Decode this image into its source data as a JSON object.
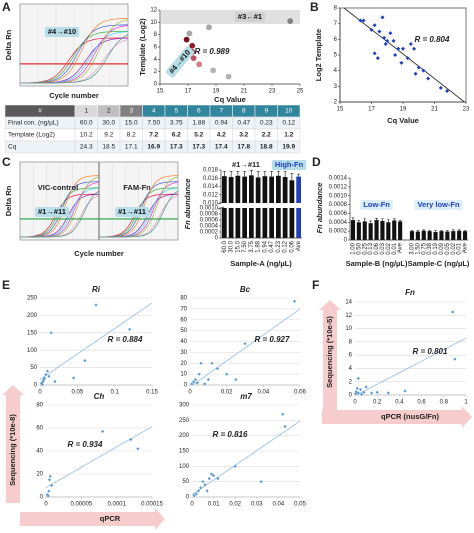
{
  "table": {
    "header": [
      "#",
      "1",
      "2",
      "3",
      "4",
      "5",
      "6",
      "7",
      "8",
      "9",
      "10"
    ],
    "rows": [
      [
        "Final con. (ng/µL)",
        "60.0",
        "30.0",
        "15.0",
        "7.50",
        "3.75",
        "1.88",
        "0.94",
        "0.47",
        "0.23",
        "0.12"
      ],
      [
        "Template (Log2)",
        "10.2",
        "9.2",
        "8.2",
        "7.2",
        "6.2",
        "5.2",
        "4.2",
        "3.2",
        "2.2",
        "1.2"
      ],
      [
        "Cq",
        "24.3",
        "18.5",
        "17.1",
        "16.9",
        "17.3",
        "17.3",
        "17.4",
        "17.8",
        "18.8",
        "19.9"
      ]
    ]
  },
  "chart_data": [
    {
      "type": "amplification",
      "panel": "A",
      "xlabel": "Cycle number",
      "ylabel": "Delta Rn",
      "annotations": [
        "#4→#10"
      ],
      "threshold_color": "#e03030"
    },
    {
      "type": "scatter",
      "xlabel": "Cq Value",
      "ylabel": "Template (Log2)",
      "x": [
        24.3,
        18.5,
        17.1,
        16.9,
        17.3,
        17.3,
        17.4,
        17.8,
        18.8,
        19.9
      ],
      "values": [
        10.2,
        9.2,
        8.2,
        7.2,
        6.2,
        5.2,
        4.2,
        3.2,
        2.2,
        1.2
      ],
      "colors": [
        "#808080",
        "#a6a6a6",
        "#a6a6a6",
        "#7a1020",
        "#8e1f2e",
        "#a5333f",
        "#bf5060",
        "#d07a85",
        "#b3b3b3",
        "#b3b3b3"
      ],
      "marker": "circle",
      "xlim": [
        15,
        25
      ],
      "xticks": [
        15,
        17,
        19,
        21,
        23,
        25
      ],
      "ylim": [
        0,
        12
      ],
      "yticks": [
        0,
        2,
        4,
        6,
        8,
        10,
        12
      ],
      "annotations": [
        "#3←#1",
        "#4→#10"
      ],
      "r_label": "R = 0.989"
    },
    {
      "type": "scatter",
      "panel": "B",
      "xlabel": "Cq Value",
      "ylabel": "Log2 Template",
      "color": "#1f3fbf",
      "marker": "diamond",
      "frame": true,
      "fit": true,
      "x": [
        16.3,
        16.5,
        17.0,
        17.2,
        17.5,
        17.7,
        17.8,
        17.9,
        18.0,
        18.2,
        18.4,
        18.5,
        18.7,
        18.9,
        19.0,
        19.3,
        19.5,
        19.7,
        17.4,
        17.2,
        20.0,
        20.3,
        20.6,
        21.4,
        21.8,
        19.8
      ],
      "values": [
        7.2,
        7.2,
        6.6,
        6.9,
        6.5,
        7.4,
        6.1,
        5.7,
        5.9,
        6.4,
        5.9,
        5.0,
        5.4,
        4.5,
        5.4,
        4.8,
        5.7,
        5.4,
        4.8,
        5.1,
        4.2,
        4.0,
        3.5,
        2.9,
        2.7,
        3.8
      ],
      "xlim": [
        15,
        23
      ],
      "xticks": [
        15,
        17,
        19,
        21,
        23
      ],
      "ylim": [
        2,
        8
      ],
      "yticks": [
        2,
        3,
        4,
        5,
        6,
        7,
        8
      ],
      "r_label": "R = 0.804"
    },
    {
      "type": "amplification",
      "panel": "C",
      "xlabel": "Cycle number",
      "ylabel": "Delta Rn",
      "annotations": [
        "VIC-control",
        "FAM-Fn",
        "#1→#11"
      ],
      "threshold_color": "#20a040",
      "split": true
    },
    {
      "type": "broken-bar",
      "ylabel": "Fn abundance",
      "xlabel": "Sample-A (ng/µL)",
      "categories": [
        "60.0",
        "30.0",
        "15.0",
        "7.50",
        "3.75",
        "1.88",
        "0.94",
        "0.47",
        "0.23",
        "0.12",
        "0.06",
        "Ave"
      ],
      "values": [
        0.0165,
        0.0163,
        0.0166,
        0.0164,
        0.0167,
        0.0162,
        0.0165,
        0.0164,
        0.0166,
        0.0163,
        0.0155,
        0.0164
      ],
      "errors": [
        0.0012,
        0.0014,
        0.0011,
        0.0013,
        0.0012,
        0.0015,
        0.0012,
        0.0013,
        0.0011,
        0.0014,
        0.0016,
        0.0006
      ],
      "colors": [
        "#111111",
        "#111111",
        "#111111",
        "#111111",
        "#111111",
        "#111111",
        "#111111",
        "#111111",
        "#111111",
        "#111111",
        "#111111",
        "#1f3fbf"
      ],
      "ylim": [
        0.01,
        0.018
      ],
      "yticks": [
        {
          "value": 0.01,
          "label": "0.010"
        },
        0.012,
        0.014,
        0.016,
        0.018
      ],
      "ylim_lower": [
        0,
        0.001
      ],
      "yticks_lower": [
        0,
        0.0002,
        0.0004,
        0.0006,
        0.0008,
        {
          "value": 0.001,
          "label": "0.0010"
        }
      ],
      "annotations": [
        "#1→#11",
        "High-Fn"
      ]
    },
    {
      "type": "grouped-bar",
      "panel": "D",
      "ylabel": "Fn abundance",
      "ylim": [
        0,
        0.0014
      ],
      "yticks": [
        0,
        0.0002,
        0.0004,
        0.0006,
        0.0008,
        {
          "value": 0.001,
          "label": "0.0010"
        },
        0.0012,
        0.0014
      ],
      "groups": [
        {
          "name": "Sample-B (ng/µL)",
          "label": "Low-Fn",
          "color": "#111111",
          "categories": [
            "1.00",
            "0.50",
            "0.25",
            "0.13",
            "0.06",
            "0.03",
            "0.02",
            "0.01",
            "Ave"
          ],
          "values": [
            0.00045,
            0.0004,
            0.00042,
            0.00038,
            0.00045,
            0.00043,
            0.0004,
            0.00044,
            0.00042
          ],
          "errors": [
            5e-05,
            4e-05,
            6e-05,
            5e-05,
            4e-05,
            5e-05,
            6e-05,
            4e-05,
            2e-05
          ]
        },
        {
          "name": "Sample-C (ng/µL)",
          "label": "Very low-Fn",
          "color": "#111111",
          "categories": [
            "3.00",
            "1.50",
            "0.75",
            "0.38",
            "0.19",
            "0.09",
            "0.05",
            "0.02",
            "0.01",
            "Ave"
          ],
          "values": [
            0.0002,
            0.00019,
            0.00021,
            0.0002,
            0.00018,
            0.0002,
            0.00019,
            0.0002,
            0.00021,
            0.0002
          ],
          "errors": [
            2e-05,
            3e-05,
            2e-05,
            2e-05,
            3e-05,
            2e-05,
            2e-05,
            3e-05,
            2e-05,
            1e-05
          ]
        }
      ]
    },
    {
      "type": "scatter-group",
      "panel": "E",
      "xlabel": "qPCR",
      "ylabel": "Sequencing (*10e-8)",
      "color": "#5b9bd5",
      "marker": "diamond",
      "grid": true,
      "fit": true,
      "charts": [
        {
          "title": "Ri",
          "x": [
            0.002,
            0.004,
            0.006,
            0.008,
            0.01,
            0.012,
            0.015,
            0.005,
            0.02,
            0.045,
            0.06,
            0.075,
            0.12,
            0.003
          ],
          "values": [
            5,
            10,
            20,
            30,
            40,
            25,
            150,
            15,
            10,
            20,
            70,
            230,
            160,
            2
          ],
          "xlim": [
            0,
            0.15
          ],
          "xticks": [
            0,
            0.05,
            0.1,
            0.15
          ],
          "ylim": [
            0,
            250
          ],
          "yticks": [
            0,
            50,
            100,
            150,
            200,
            250
          ],
          "r_label": "R = 0.884"
        },
        {
          "title": "Bc",
          "x": [
            0.001,
            0.002,
            0.003,
            0.005,
            0.006,
            0.01,
            0.012,
            0.015,
            0.02,
            0.025,
            0.03,
            0.057,
            0.004,
            0.008
          ],
          "values": [
            1,
            3,
            5,
            10,
            20,
            5,
            20,
            15,
            10,
            5,
            38,
            77,
            2,
            1
          ],
          "xlim": [
            0,
            0.06
          ],
          "xticks": [
            0,
            0.02,
            0.04,
            0.06
          ],
          "ylim": [
            0,
            80
          ],
          "yticks": [
            0,
            10,
            20,
            30,
            40,
            50,
            60,
            70,
            80
          ],
          "r_label": "R = 0.927"
        },
        {
          "title": "Ch",
          "x": [
            2e-06,
            4e-06,
            5e-06,
            6e-06,
            8e-06,
            8e-05,
            0.00012,
            0.00013,
            3e-06
          ],
          "values": [
            2,
            5,
            15,
            18,
            10,
            57,
            50,
            42,
            1
          ],
          "xlim": [
            0,
            0.00015
          ],
          "xticks": [
            0,
            5e-05,
            0.0001,
            0.00015
          ],
          "ylim": [
            0,
            80
          ],
          "yticks": [
            0,
            20,
            40,
            60,
            80
          ],
          "r_label": "R = 0.934"
        },
        {
          "title": "m7",
          "x": [
            0.001,
            0.002,
            0.003,
            0.004,
            0.005,
            0.006,
            0.008,
            0.01,
            0.012,
            0.02,
            0.032,
            0.042,
            0.043,
            0.007,
            0.009
          ],
          "values": [
            5,
            10,
            20,
            30,
            50,
            40,
            60,
            70,
            60,
            100,
            50,
            270,
            230,
            20,
            75
          ],
          "xlim": [
            0,
            0.05
          ],
          "xticks": [
            0,
            0.01,
            0.02,
            0.03,
            0.04,
            0.05
          ],
          "ylim": [
            0,
            300
          ],
          "yticks": [
            0,
            50,
            100,
            150,
            200,
            250,
            300
          ],
          "r_label": "R = 0.816"
        }
      ]
    },
    {
      "type": "scatter",
      "panel": "F",
      "title": "Fn",
      "xlabel": "qPCR (nusG/Fn)",
      "ylabel": "Sequencing (*10e-5)",
      "color": "#5b9bd5",
      "marker": "diamond",
      "grid": true,
      "fit": true,
      "x": [
        0.005,
        0.01,
        0.02,
        0.03,
        0.05,
        0.08,
        0.1,
        0.15,
        0.2,
        0.3,
        0.45,
        0.88,
        0.9,
        0.03,
        0.06
      ],
      "values": [
        0.2,
        0.5,
        1,
        0.3,
        0.8,
        0.4,
        1.2,
        0.3,
        0.4,
        0.3,
        0.6,
        12.5,
        5.4,
        2.5,
        0.1
      ],
      "xlim": [
        0,
        1
      ],
      "xticks": [
        0,
        0.2,
        0.4,
        0.6,
        0.8,
        1
      ],
      "ylim": [
        0,
        14
      ],
      "yticks": [
        0,
        2,
        4,
        6,
        8,
        10,
        12,
        14
      ],
      "r_label": "R = 0.801"
    }
  ]
}
